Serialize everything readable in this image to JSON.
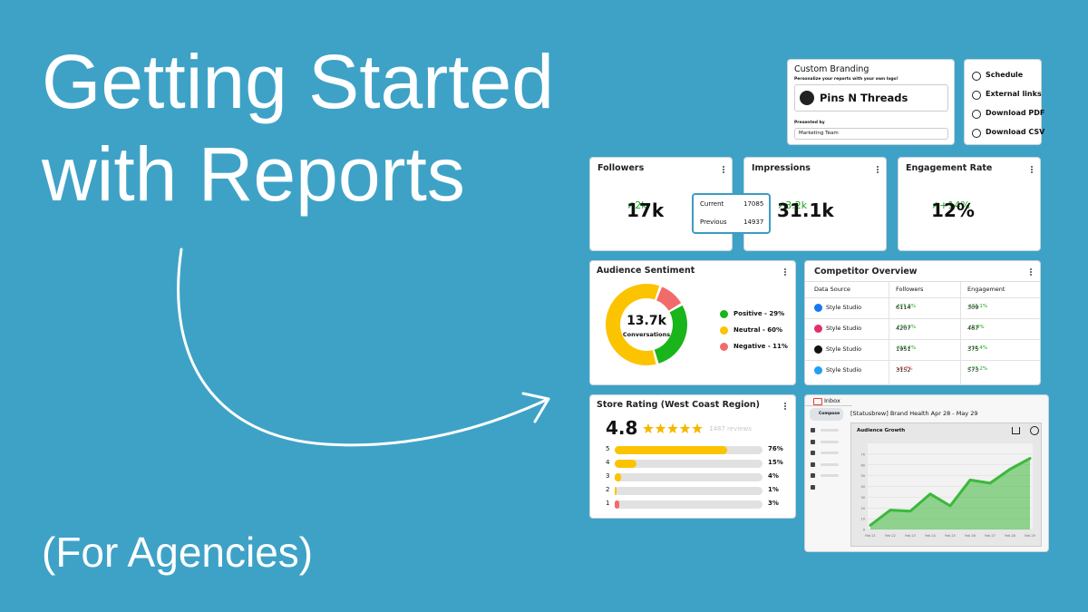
{
  "hero": {
    "title_lines": [
      "Getting Started",
      "with Reports"
    ],
    "subtitle": "(For Agencies)"
  },
  "branding": {
    "title": "Custom Branding",
    "hint": "Personalize your reports with your own logo!",
    "brand": "Pins N Threads",
    "presented_label": "Presented by",
    "presenter": "Marketing Team"
  },
  "actions": [
    "Schedule",
    "External links",
    "Download PDF",
    "Download CSV"
  ],
  "kpis": [
    {
      "title": "Followers",
      "value": "17k",
      "change": "↗2k"
    },
    {
      "title": "Impressions",
      "value": "31.1k",
      "change": "↗3.2k"
    },
    {
      "title": "Engagement Rate",
      "value": "12%",
      "change": "↗+14%"
    }
  ],
  "tooltip": {
    "rows": [
      [
        "Current",
        "17085"
      ],
      [
        "Previous",
        "14937"
      ]
    ]
  },
  "sentiment": {
    "title": "Audience Sentiment",
    "total": "13.7k",
    "total_label": "Conversations",
    "segments": [
      {
        "name": "Positive",
        "value": 29,
        "label": "Positive - 29%",
        "color": "#19b51a"
      },
      {
        "name": "Neutral",
        "value": 60,
        "label": "Neutral - 60%",
        "color": "#fcc300"
      },
      {
        "name": "Negative",
        "value": 11,
        "label": "Negative - 11%",
        "color": "#f26b6b"
      }
    ]
  },
  "competitors": {
    "title": "Competitor Overview",
    "columns": [
      "Data Source",
      "Followers",
      "Engagement"
    ],
    "rows": [
      {
        "source": "Style Studio",
        "followers": "6114",
        "followers_change": "↗21.6%",
        "engagement": "309",
        "engagement_change": "↗32.1%"
      },
      {
        "source": "Style Studio",
        "followers": "4207",
        "followers_change": "↗30.2%",
        "engagement": "467",
        "engagement_change": "↗9.8%"
      },
      {
        "source": "Style Studio",
        "followers": "1951",
        "followers_change": "↗19.4%",
        "engagement": "375",
        "engagement_change": "↗18.4%"
      },
      {
        "source": "Style Studio",
        "followers": "3152",
        "followers_change": "↘8.7%",
        "engagement": "573",
        "engagement_change": "↗37.2%"
      }
    ]
  },
  "rating": {
    "title": "Store Rating (West Coast Region)",
    "score": "4.8",
    "reviews": "1487 reviews",
    "rows": [
      {
        "stars": "5",
        "value": 76,
        "label": "76%",
        "color": "#fcc300"
      },
      {
        "stars": "4",
        "value": 15,
        "label": "15%",
        "color": "#fcc300"
      },
      {
        "stars": "3",
        "value": 4,
        "label": "4%",
        "color": "#fcc300"
      },
      {
        "stars": "2",
        "value": 1,
        "label": "1%",
        "color": "#fcc300"
      },
      {
        "stars": "1",
        "value": 3,
        "label": "3%",
        "color": "#f26b6b"
      }
    ]
  },
  "inbox": {
    "app": "Inbox",
    "compose": "Compose",
    "subject": "[Statusbrew] Brand Health Apr 28 - May 29",
    "chart": {
      "type": "area",
      "title": "Audience Growth",
      "categories": [
        "Feb 21",
        "Feb 22",
        "Feb 23",
        "Feb 24",
        "Feb 25",
        "Feb 26",
        "Feb 27",
        "Feb 28",
        "Feb 29"
      ],
      "values": [
        4,
        18,
        17,
        33,
        22,
        46,
        43,
        56,
        66
      ],
      "color": "#3cb83c",
      "ylim": [
        0,
        80
      ],
      "yticks": [
        0,
        10,
        20,
        30,
        40,
        50,
        60,
        70
      ]
    }
  }
}
